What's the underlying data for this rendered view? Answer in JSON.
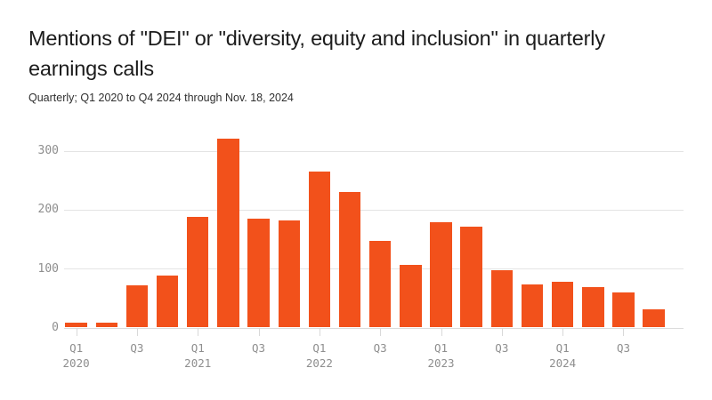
{
  "header": {
    "title": "Mentions of \"DEI\" or \"diversity, equity and inclusion\" in quarterly earnings calls",
    "subtitle": "Quarterly; Q1 2020 to Q4 2024 through Nov. 18, 2024"
  },
  "colors": {
    "bar": "#f2511b",
    "gridline": "#e4e4e4",
    "baseline": "#dcdcdc",
    "axis_text": "#8e8e8e",
    "title_text": "#1c1c1c"
  },
  "chart_data": {
    "type": "bar",
    "title": "Mentions of \"DEI\" or \"diversity, equity and inclusion\" in quarterly earnings calls",
    "subtitle": "Quarterly; Q1 2020 to Q4 2024 through Nov. 18, 2024",
    "xlabel": "",
    "ylabel": "",
    "ylim": [
      0,
      330
    ],
    "grid": true,
    "legend": false,
    "categories": [
      "Q1 2020",
      "Q2 2020",
      "Q3 2020",
      "Q4 2020",
      "Q1 2021",
      "Q2 2021",
      "Q3 2021",
      "Q4 2021",
      "Q1 2022",
      "Q2 2022",
      "Q3 2022",
      "Q4 2022",
      "Q1 2023",
      "Q2 2023",
      "Q3 2023",
      "Q4 2023",
      "Q1 2024",
      "Q2 2024",
      "Q3 2024",
      "Q4 2024"
    ],
    "values": [
      9,
      9,
      72,
      88,
      187,
      320,
      185,
      181,
      265,
      230,
      147,
      107,
      178,
      171,
      97,
      73,
      77,
      69,
      60,
      31
    ],
    "y_ticks": [
      0,
      100,
      200,
      300
    ],
    "x_ticks": [
      {
        "bar_index": 0,
        "label": "Q1",
        "year": "2020"
      },
      {
        "bar_index": 2,
        "label": "Q3",
        "year": ""
      },
      {
        "bar_index": 4,
        "label": "Q1",
        "year": "2021"
      },
      {
        "bar_index": 6,
        "label": "Q3",
        "year": ""
      },
      {
        "bar_index": 8,
        "label": "Q1",
        "year": "2022"
      },
      {
        "bar_index": 10,
        "label": "Q3",
        "year": ""
      },
      {
        "bar_index": 12,
        "label": "Q1",
        "year": "2023"
      },
      {
        "bar_index": 14,
        "label": "Q3",
        "year": ""
      },
      {
        "bar_index": 16,
        "label": "Q1",
        "year": "2024"
      },
      {
        "bar_index": 18,
        "label": "Q3",
        "year": ""
      }
    ]
  }
}
